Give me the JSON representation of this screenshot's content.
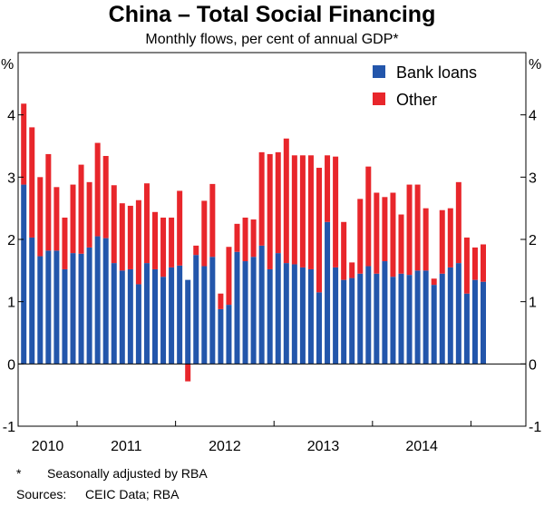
{
  "chart_data": {
    "type": "bar",
    "stacked": true,
    "title": "China – Total Social Financing",
    "subtitle": "Monthly flows, per cent of annual GDP*",
    "y_unit_left": "%",
    "y_unit_right": "%",
    "ylim": [
      -1,
      5
    ],
    "yticks": [
      "-1",
      "0",
      "1",
      "2",
      "3",
      "4"
    ],
    "year_labels": [
      "2010",
      "2011",
      "2012",
      "2013",
      "2014"
    ],
    "legend_position": "top-right",
    "grid": false,
    "series": [
      {
        "name": "Bank loans",
        "color": "#2356ab",
        "values": [
          2.88,
          2.03,
          1.73,
          1.82,
          1.82,
          1.52,
          1.78,
          1.77,
          1.87,
          2.05,
          2.02,
          1.62,
          1.5,
          1.52,
          1.28,
          1.62,
          1.52,
          1.4,
          1.55,
          1.58,
          1.35,
          1.75,
          1.57,
          1.72,
          0.88,
          0.95,
          1.8,
          1.65,
          1.72,
          1.9,
          1.52,
          1.78,
          1.62,
          1.6,
          1.55,
          1.52,
          1.15,
          2.28,
          1.55,
          1.35,
          1.38,
          1.45,
          1.57,
          1.45,
          1.65,
          1.4,
          1.45,
          1.43,
          1.5,
          1.5,
          1.27,
          1.45,
          1.55,
          1.62,
          1.13,
          1.35,
          1.32
        ]
      },
      {
        "name": "Other",
        "color": "#e8262b",
        "values": [
          1.3,
          1.77,
          1.27,
          1.55,
          1.02,
          0.83,
          1.1,
          1.43,
          1.05,
          1.5,
          1.32,
          1.25,
          1.08,
          1.02,
          1.35,
          1.28,
          0.92,
          0.95,
          0.8,
          1.2,
          -0.28,
          0.15,
          1.05,
          1.17,
          0.25,
          0.93,
          0.45,
          0.7,
          0.6,
          1.5,
          1.85,
          1.62,
          2.0,
          1.75,
          1.8,
          1.83,
          2.0,
          1.07,
          1.78,
          0.93,
          0.25,
          1.2,
          1.6,
          1.3,
          1.03,
          1.35,
          0.95,
          1.45,
          1.38,
          1.0,
          0.1,
          1.02,
          0.95,
          1.3,
          0.9,
          0.52,
          0.6
        ]
      }
    ]
  },
  "footnotes": {
    "asterisk_mark": "*",
    "asterisk_text": "Seasonally adjusted by RBA",
    "sources_label": "Sources:",
    "sources_text": "CEIC Data; RBA"
  }
}
